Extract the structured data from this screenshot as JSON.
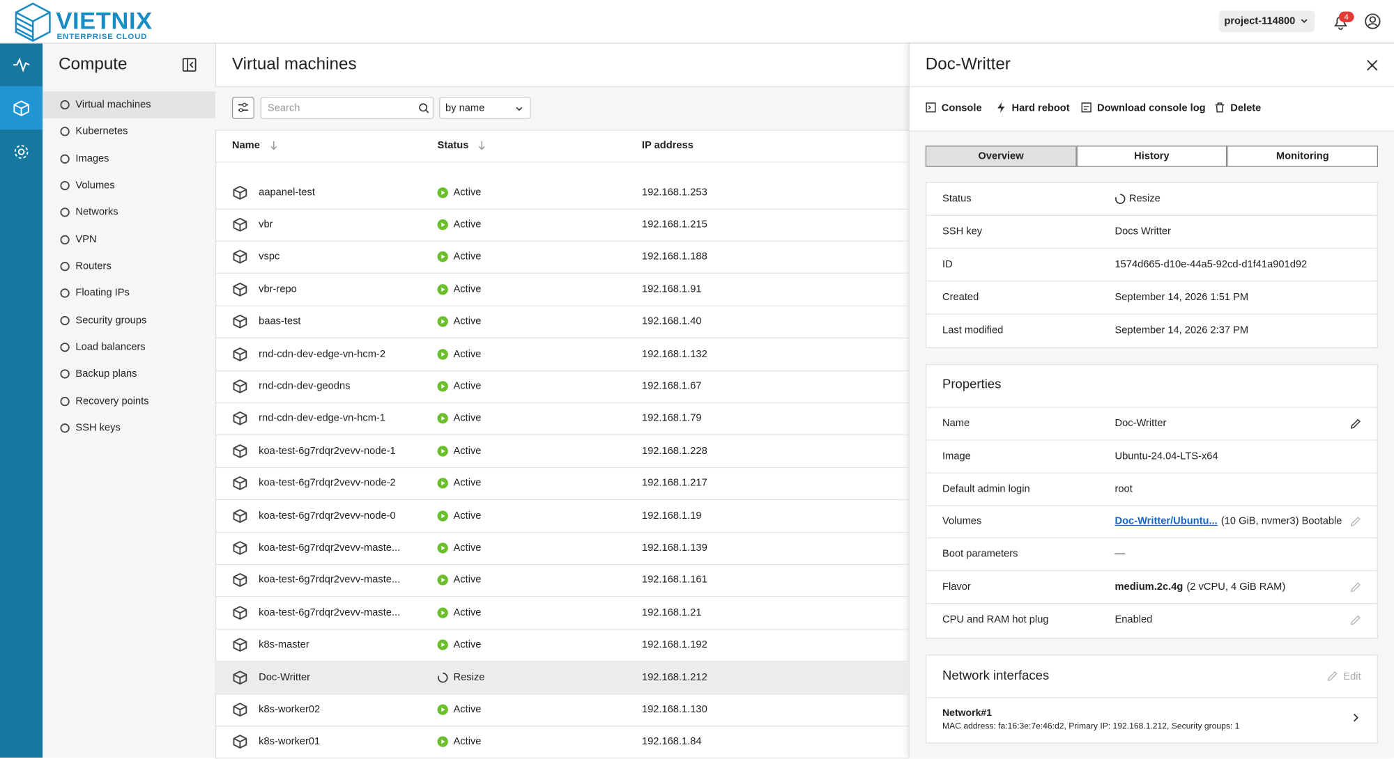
{
  "header": {
    "logo_title": "VIETNIX",
    "logo_subtitle": "ENTERPRISE CLOUD",
    "project": "project-114800",
    "notifications": 4
  },
  "sidebar": {
    "title": "Compute",
    "items": [
      "Virtual machines",
      "Kubernetes",
      "Images",
      "Volumes",
      "Networks",
      "VPN",
      "Routers",
      "Floating IPs",
      "Security groups",
      "Load balancers",
      "Backup plans",
      "Recovery points",
      "SSH keys"
    ]
  },
  "main": {
    "title": "Virtual machines",
    "search_placeholder": "Search",
    "sort": "by name",
    "columns": [
      "Name",
      "Status",
      "IP address"
    ],
    "rows": [
      [
        "aapanel-test",
        "Active",
        "192.168.1.253"
      ],
      [
        "vbr",
        "Active",
        "192.168.1.215"
      ],
      [
        "vspc",
        "Active",
        "192.168.1.188"
      ],
      [
        "vbr-repo",
        "Active",
        "192.168.1.91"
      ],
      [
        "baas-test",
        "Active",
        "192.168.1.40"
      ],
      [
        "rnd-cdn-dev-edge-vn-hcm-2",
        "Active",
        "192.168.1.132"
      ],
      [
        "rnd-cdn-dev-geodns",
        "Active",
        "192.168.1.67"
      ],
      [
        "rnd-cdn-dev-edge-vn-hcm-1",
        "Active",
        "192.168.1.79"
      ],
      [
        "koa-test-6g7rdqr2vevv-node-1",
        "Active",
        "192.168.1.228"
      ],
      [
        "koa-test-6g7rdqr2vevv-node-2",
        "Active",
        "192.168.1.217"
      ],
      [
        "koa-test-6g7rdqr2vevv-node-0",
        "Active",
        "192.168.1.19"
      ],
      [
        "koa-test-6g7rdqr2vevv-maste...",
        "Active",
        "192.168.1.139"
      ],
      [
        "koa-test-6g7rdqr2vevv-maste...",
        "Active",
        "192.168.1.161"
      ],
      [
        "koa-test-6g7rdqr2vevv-maste...",
        "Active",
        "192.168.1.21"
      ],
      [
        "k8s-master",
        "Active",
        "192.168.1.192"
      ],
      [
        "Doc-Writter",
        "Resize",
        "192.168.1.212"
      ],
      [
        "k8s-worker02",
        "Active",
        "192.168.1.130"
      ],
      [
        "k8s-worker01",
        "Active",
        "192.168.1.84"
      ]
    ]
  },
  "panel": {
    "title": "Doc-Writter",
    "actions": [
      "Console",
      "Hard reboot",
      "Download console log",
      "Delete"
    ],
    "tabs": [
      "Overview",
      "History",
      "Monitoring"
    ],
    "overview": [
      [
        "Status",
        "Resize"
      ],
      [
        "SSH key",
        "Docs Writter"
      ],
      [
        "ID",
        "1574d665-d10e-44a5-92cd-d1f41a901d92"
      ],
      [
        "Created",
        "September 14, 2026 1:51 PM"
      ],
      [
        "Last modified",
        "September 14, 2026 2:37 PM"
      ]
    ],
    "properties": {
      "title": "Properties",
      "rows": [
        [
          "Name",
          "Doc-Writter"
        ],
        [
          "Image",
          "Ubuntu-24.04-LTS-x64"
        ],
        [
          "Default admin login",
          "root"
        ],
        [
          "Volumes",
          "Doc-Writter/Ubuntu...",
          "(10 GiB, nvmer3) Bootable"
        ],
        [
          "Boot parameters",
          "—"
        ],
        [
          "Flavor",
          "medium.2c.4g",
          "(2 vCPU, 4 GiB RAM)"
        ],
        [
          "CPU and RAM hot plug",
          "Enabled"
        ]
      ]
    },
    "network": {
      "title": "Network interfaces",
      "edit": "Edit",
      "items": [
        {
          "name": "Network#1",
          "detail": "MAC address: fa:16:3e:7e:46:d2, Primary IP: 192.168.1.212, Security groups: 1"
        }
      ]
    }
  }
}
